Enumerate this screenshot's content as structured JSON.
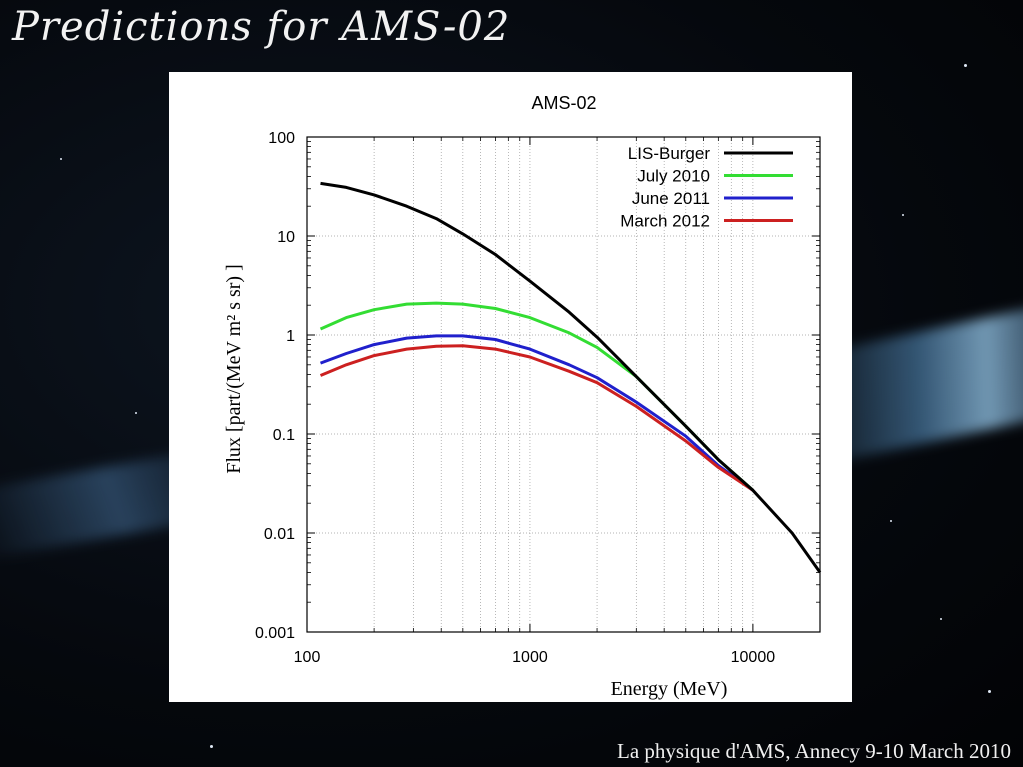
{
  "slide": {
    "title": "Predictions for AMS-02",
    "footer": "La physique d'AMS, Annecy 9-10 March 2010"
  },
  "chart_data": {
    "type": "line",
    "title": "AMS-02",
    "xlabel": "Energy (MeV)",
    "ylabel": "Flux [part/(MeV m² s sr) ]",
    "xscale": "log",
    "yscale": "log",
    "xlim": [
      100,
      20000
    ],
    "ylim": [
      0.001,
      100
    ],
    "x_ticks": [
      "100",
      "1000",
      "10000"
    ],
    "y_ticks": [
      "0.001",
      "0.01",
      "0.1",
      "1",
      "10",
      "100"
    ],
    "grid": true,
    "legend_position": "top-right",
    "series": [
      {
        "name": "LIS-Burger",
        "color": "#000000",
        "x": [
          115,
          150,
          200,
          280,
          380,
          500,
          700,
          1000,
          1500,
          2000,
          3000,
          5000,
          7000,
          10000,
          15000,
          20000
        ],
        "y": [
          34,
          31,
          26,
          20,
          15,
          10.5,
          6.5,
          3.5,
          1.7,
          0.95,
          0.38,
          0.12,
          0.055,
          0.027,
          0.01,
          0.004
        ]
      },
      {
        "name": "July 2010",
        "color": "#33dd33",
        "x": [
          115,
          150,
          200,
          280,
          380,
          500,
          700,
          1000,
          1500,
          2000,
          3000,
          5000,
          7000,
          10000
        ],
        "y": [
          1.15,
          1.5,
          1.8,
          2.05,
          2.1,
          2.05,
          1.85,
          1.5,
          1.05,
          0.75,
          0.38,
          0.12,
          0.055,
          0.027
        ]
      },
      {
        "name": "June 2011",
        "color": "#2020cc",
        "x": [
          115,
          150,
          200,
          280,
          380,
          500,
          700,
          1000,
          1500,
          2000,
          3000,
          5000,
          7000,
          10000
        ],
        "y": [
          0.52,
          0.65,
          0.8,
          0.93,
          0.98,
          0.98,
          0.9,
          0.72,
          0.5,
          0.37,
          0.21,
          0.095,
          0.048,
          0.027
        ]
      },
      {
        "name": "March 2012",
        "color": "#cc2020",
        "x": [
          115,
          150,
          200,
          280,
          380,
          500,
          700,
          1000,
          1500,
          2000,
          3000,
          5000,
          7000,
          10000
        ],
        "y": [
          0.39,
          0.5,
          0.62,
          0.72,
          0.77,
          0.78,
          0.72,
          0.6,
          0.43,
          0.33,
          0.19,
          0.085,
          0.046,
          0.027
        ]
      }
    ]
  }
}
